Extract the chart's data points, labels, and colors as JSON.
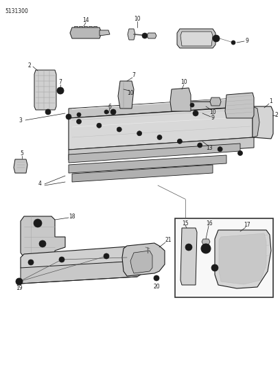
{
  "title": "5131300",
  "bg_color": "#ffffff",
  "line_color": "#1a1a1a",
  "gray_light": "#c8c8c8",
  "gray_mid": "#aaaaaa",
  "gray_dark": "#888888",
  "fig_width": 4.08,
  "fig_height": 5.33,
  "dpi": 100
}
